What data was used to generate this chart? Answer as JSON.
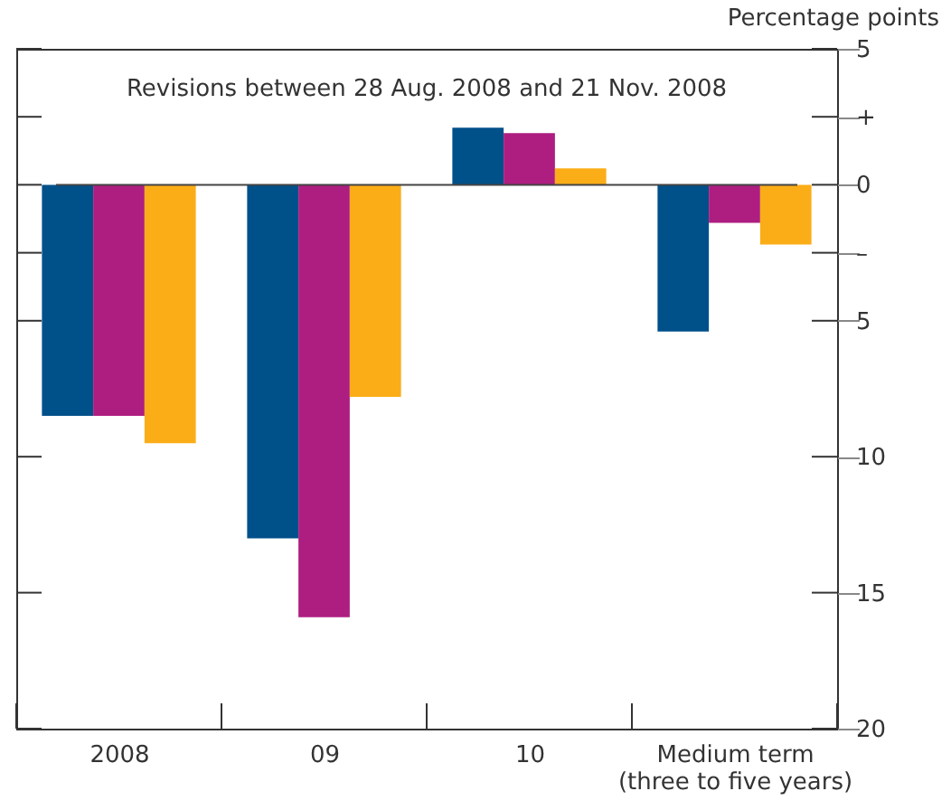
{
  "chart_data": {
    "type": "bar",
    "ylabel": "Percentage points",
    "annotations": [
      "Revisions between 28 Aug. 2008 and 21 Nov. 2008"
    ],
    "categories": [
      "2008",
      "09",
      "10",
      "Medium term\n(three to five years)"
    ],
    "series": [
      {
        "color": "#00508a",
        "values": [
          -8.5,
          -13.0,
          2.1,
          -5.4
        ]
      },
      {
        "color": "#ae1d80",
        "values": [
          -8.5,
          -15.9,
          1.9,
          -1.4
        ]
      },
      {
        "color": "#fbad18",
        "values": [
          -9.5,
          -7.8,
          0.6,
          -2.2
        ]
      }
    ],
    "ylim": [
      -20,
      5
    ],
    "yticks": [
      5,
      {
        "value": 2.5,
        "label": "+"
      },
      0,
      {
        "value": -2.5,
        "label": "–"
      },
      {
        "value": -5,
        "label": "5"
      },
      {
        "value": -10,
        "label": "10"
      },
      {
        "value": -15,
        "label": "15"
      },
      {
        "value": -20,
        "label": "20"
      }
    ],
    "ref_lines": [
      {
        "axis": "y",
        "value": 0,
        "color": "#444444"
      }
    ],
    "grid": false
  }
}
